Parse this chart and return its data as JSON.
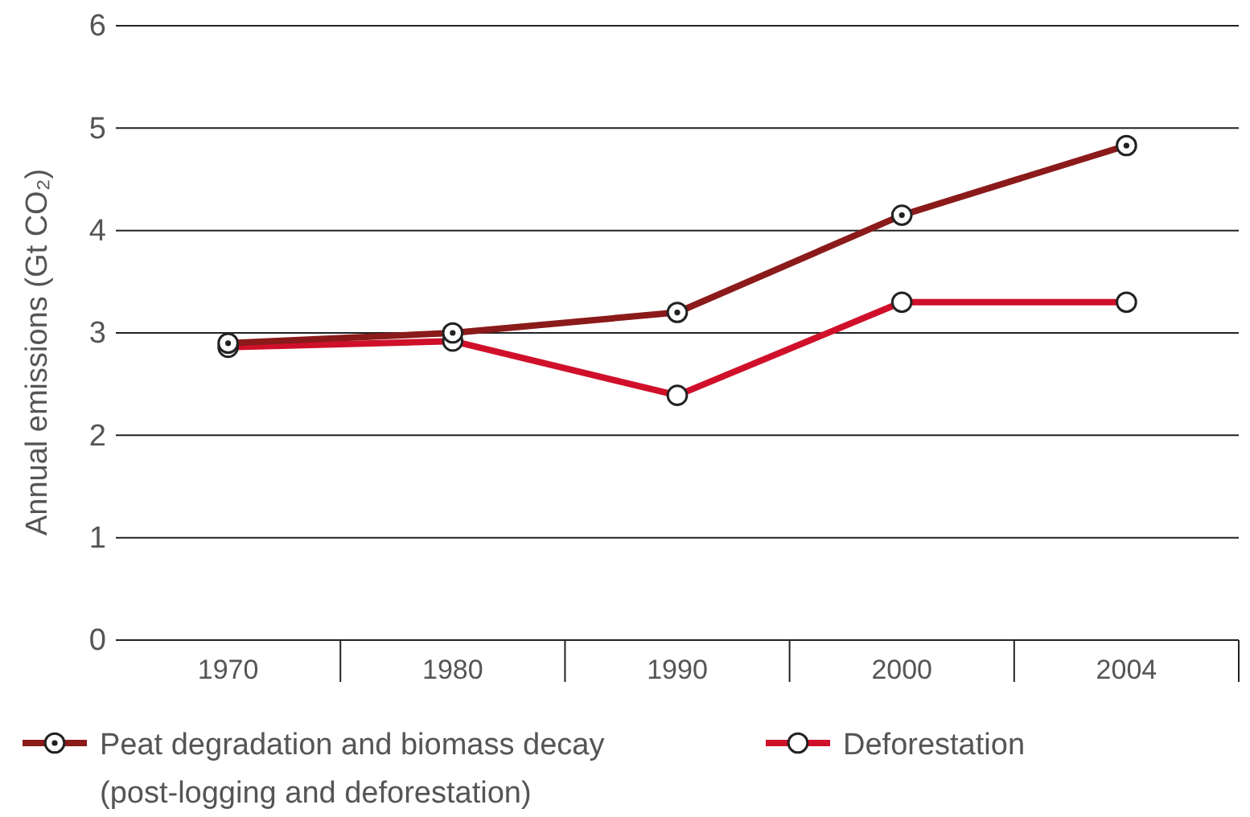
{
  "chart_data": {
    "type": "line",
    "ylabel": "Annual emissions (Gt CO₂)",
    "categories": [
      "1970",
      "1980",
      "1990",
      "2000",
      "2004"
    ],
    "series": [
      {
        "name": "Peat degradation and biomass decay (post-logging and deforestation)",
        "color": "#8b1a1a",
        "values": [
          2.9,
          3.0,
          3.2,
          4.15,
          4.83
        ]
      },
      {
        "name": "Deforestation",
        "color": "#d0102a",
        "values": [
          2.86,
          2.92,
          2.39,
          3.3,
          3.3
        ]
      }
    ],
    "ylim": [
      0,
      6
    ],
    "yticks": [
      0,
      1,
      2,
      3,
      4,
      5,
      6
    ],
    "grid": "y",
    "legend": "bottom",
    "marker": "circle",
    "line_style": "solid"
  }
}
